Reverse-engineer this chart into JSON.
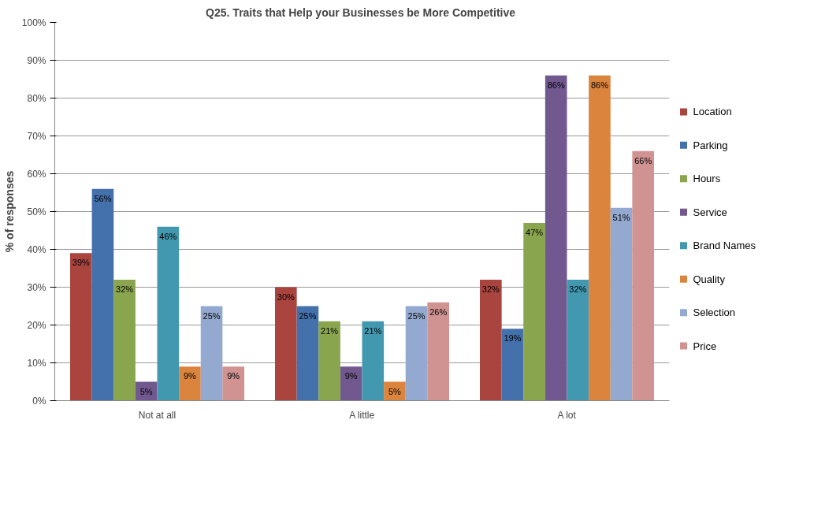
{
  "chart_data": {
    "type": "bar",
    "title": "Q25. Traits that Help your Businesses  be More Competitive",
    "ylabel": "% of responses",
    "categories": [
      "Not at all",
      "A little",
      "A lot"
    ],
    "series": [
      {
        "name": "Location",
        "color": "#a9443f",
        "values": [
          39,
          30,
          32
        ],
        "value_labels": [
          "39%",
          "30%",
          "32%"
        ]
      },
      {
        "name": "Parking",
        "color": "#4470ab",
        "values": [
          56,
          25,
          19
        ],
        "value_labels": [
          "56%",
          "25%",
          "19%"
        ]
      },
      {
        "name": "Hours",
        "color": "#89a54e",
        "values": [
          32,
          21,
          47
        ],
        "value_labels": [
          "32%",
          "21%",
          "47%"
        ]
      },
      {
        "name": "Service",
        "color": "#71588f",
        "values": [
          5,
          9,
          86
        ],
        "value_labels": [
          "5%",
          "9%",
          "86%"
        ]
      },
      {
        "name": "Brand Names",
        "color": "#4298af",
        "values": [
          46,
          21,
          32
        ],
        "value_labels": [
          "46%",
          "21%",
          "32%"
        ]
      },
      {
        "name": "Quality",
        "color": "#db843d",
        "values": [
          9,
          5,
          86
        ],
        "value_labels": [
          "9%",
          "5%",
          "86%"
        ]
      },
      {
        "name": "Selection",
        "color": "#93a9cf",
        "values": [
          25,
          25,
          51
        ],
        "value_labels": [
          "25%",
          "25%",
          "51%"
        ]
      },
      {
        "name": "Price",
        "color": "#d09392",
        "values": [
          9,
          26,
          66
        ],
        "value_labels": [
          "9%",
          "26%",
          "66%"
        ]
      }
    ],
    "ylim": [
      0,
      100
    ],
    "yticks": [
      {
        "value": 0,
        "label": "0%"
      },
      {
        "value": 10,
        "label": "10%"
      },
      {
        "value": 20,
        "label": "20%"
      },
      {
        "value": 30,
        "label": "30%"
      },
      {
        "value": 40,
        "label": "40%"
      },
      {
        "value": 50,
        "label": "50%"
      },
      {
        "value": 60,
        "label": "60%"
      },
      {
        "value": 70,
        "label": "70%"
      },
      {
        "value": 80,
        "label": "80%"
      },
      {
        "value": 90,
        "label": "90%"
      },
      {
        "value": 100,
        "label": "100%"
      }
    ],
    "grid": "y",
    "legend": "right"
  }
}
